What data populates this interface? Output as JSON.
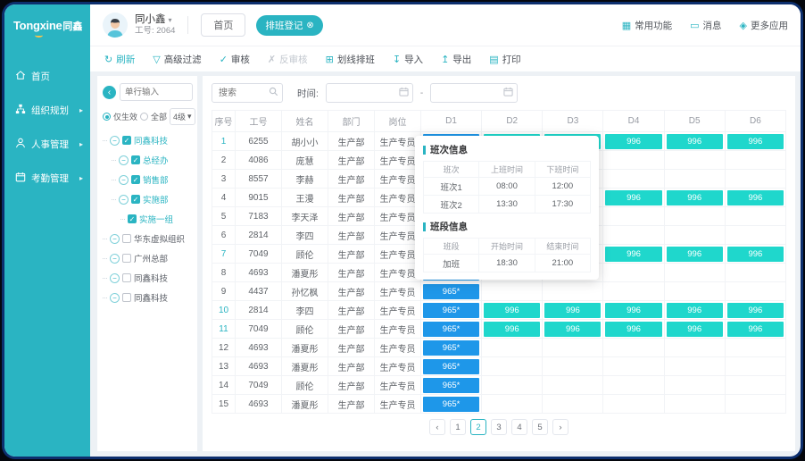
{
  "brand": {
    "logo_en": "Tongxine",
    "logo_cn": "同鑫"
  },
  "icons": {
    "caret_down": "▾",
    "arrow_right": "▸",
    "close_circle": "⊗",
    "grid": "▦",
    "message": "▭",
    "diamond": "◈",
    "expander_minus": "−",
    "back_arrow": "‹",
    "check": "✓"
  },
  "sidebar": {
    "items": [
      {
        "name": "home",
        "label": "首页",
        "arrow": false
      },
      {
        "name": "org-planning",
        "label": "组织规划",
        "arrow": true
      },
      {
        "name": "hr-management",
        "label": "人事管理",
        "arrow": true
      },
      {
        "name": "attendance-management",
        "label": "考勤管理",
        "arrow": true
      }
    ]
  },
  "header": {
    "user_name": "同小鑫",
    "user_id": "工号: 2064",
    "home_button": "首页",
    "tab_badge": "排班登记",
    "actions": [
      {
        "name": "quick-functions",
        "label": "常用功能",
        "glyph": "▦"
      },
      {
        "name": "messages",
        "label": "消息",
        "glyph": "▭"
      },
      {
        "name": "more-apps",
        "label": "更多应用",
        "glyph": "◈"
      }
    ]
  },
  "toolbar": {
    "items": [
      {
        "name": "refresh",
        "label": "刷新",
        "glyph": "↻",
        "state": "active"
      },
      {
        "name": "advanced-filter",
        "label": "高级过滤",
        "glyph": "▽",
        "state": "normal"
      },
      {
        "name": "audit",
        "label": "审核",
        "glyph": "✓",
        "state": "normal"
      },
      {
        "name": "reverse-audit",
        "label": "反审核",
        "glyph": "✗",
        "state": "disabled"
      },
      {
        "name": "line-scheduling",
        "label": "划线排班",
        "glyph": "⊞",
        "state": "normal"
      },
      {
        "name": "import",
        "label": "导入",
        "glyph": "↧",
        "state": "normal"
      },
      {
        "name": "export",
        "label": "导出",
        "glyph": "↥",
        "state": "normal"
      },
      {
        "name": "print",
        "label": "打印",
        "glyph": "▤",
        "state": "normal"
      }
    ]
  },
  "tree_panel": {
    "search_placeholder": "单行输入",
    "radio_effective": "仅生效",
    "radio_all": "全部",
    "level_select": "4级",
    "nodes": [
      {
        "label": "同鑫科技",
        "level": 0,
        "checked": true,
        "expander": true
      },
      {
        "label": "总经办",
        "level": 1,
        "checked": true,
        "expander": true
      },
      {
        "label": "销售部",
        "level": 1,
        "checked": true,
        "expander": true
      },
      {
        "label": "实施部",
        "level": 1,
        "checked": true,
        "expander": true
      },
      {
        "label": "实施一组",
        "level": 2,
        "checked": true,
        "expander": false
      },
      {
        "label": "华东虚拟组织",
        "level": 0,
        "checked": false,
        "expander": true
      },
      {
        "label": "广州总部",
        "level": 0,
        "checked": false,
        "expander": true
      },
      {
        "label": "同鑫科技",
        "level": 0,
        "checked": false,
        "expander": true
      },
      {
        "label": "同鑫科技",
        "level": 0,
        "checked": false,
        "expander": true
      }
    ]
  },
  "filter_bar": {
    "search_placeholder": "搜索",
    "time_label": "时间:",
    "time_separator": "-"
  },
  "schedule_table": {
    "columns": [
      "序号",
      "工号",
      "姓名",
      "部门",
      "岗位",
      "D1",
      "D2",
      "D3",
      "D4",
      "D5",
      "D6"
    ],
    "cell_colors": {
      "965*": "#1e97e9",
      "996": "#1fd7cc"
    },
    "rows": [
      {
        "no": "1",
        "emp_id": "6255",
        "name": "胡小小",
        "dept": "生产部",
        "post": "生产专员",
        "days": [
          "965*",
          "996",
          "996",
          "996",
          "996",
          "996"
        ],
        "highlight": true
      },
      {
        "no": "2",
        "emp_id": "4086",
        "name": "庞慧",
        "dept": "生产部",
        "post": "生产专员",
        "days": [
          "",
          "",
          "",
          "",
          "",
          ""
        ],
        "highlight": false
      },
      {
        "no": "3",
        "emp_id": "8557",
        "name": "李赫",
        "dept": "生产部",
        "post": "生产专员",
        "days": [
          "",
          "",
          "",
          "",
          "",
          ""
        ],
        "highlight": false
      },
      {
        "no": "4",
        "emp_id": "9015",
        "name": "王漫",
        "dept": "生产部",
        "post": "生产专员",
        "days": [
          "",
          "",
          "",
          "996",
          "996",
          "996"
        ],
        "highlight": false
      },
      {
        "no": "5",
        "emp_id": "7183",
        "name": "李天泽",
        "dept": "生产部",
        "post": "生产专员",
        "days": [
          "",
          "",
          "",
          "",
          "",
          ""
        ],
        "highlight": false
      },
      {
        "no": "6",
        "emp_id": "2814",
        "name": "李四",
        "dept": "生产部",
        "post": "生产专员",
        "days": [
          "",
          "",
          "",
          "",
          "",
          ""
        ],
        "highlight": false
      },
      {
        "no": "7",
        "emp_id": "7049",
        "name": "顾伦",
        "dept": "生产部",
        "post": "生产专员",
        "days": [
          "",
          "",
          "",
          "996",
          "996",
          "996"
        ],
        "highlight": true
      },
      {
        "no": "8",
        "emp_id": "4693",
        "name": "潘夏彤",
        "dept": "生产部",
        "post": "生产专员",
        "days": [
          "965*",
          "",
          "",
          "",
          "",
          ""
        ],
        "highlight": false
      },
      {
        "no": "9",
        "emp_id": "4437",
        "name": "孙忆枫",
        "dept": "生产部",
        "post": "生产专员",
        "days": [
          "965*",
          "",
          "",
          "",
          "",
          ""
        ],
        "highlight": false
      },
      {
        "no": "10",
        "emp_id": "2814",
        "name": "李四",
        "dept": "生产部",
        "post": "生产专员",
        "days": [
          "965*",
          "996",
          "996",
          "996",
          "996",
          "996"
        ],
        "highlight": true
      },
      {
        "no": "11",
        "emp_id": "7049",
        "name": "顾伦",
        "dept": "生产部",
        "post": "生产专员",
        "days": [
          "965*",
          "996",
          "996",
          "996",
          "996",
          "996"
        ],
        "highlight": true
      },
      {
        "no": "12",
        "emp_id": "4693",
        "name": "潘夏彤",
        "dept": "生产部",
        "post": "生产专员",
        "days": [
          "965*",
          "",
          "",
          "",
          "",
          ""
        ],
        "highlight": false
      },
      {
        "no": "13",
        "emp_id": "4693",
        "name": "潘夏彤",
        "dept": "生产部",
        "post": "生产专员",
        "days": [
          "965*",
          "",
          "",
          "",
          "",
          ""
        ],
        "highlight": false
      },
      {
        "no": "14",
        "emp_id": "7049",
        "name": "顾伦",
        "dept": "生产部",
        "post": "生产专员",
        "days": [
          "965*",
          "",
          "",
          "",
          "",
          ""
        ],
        "highlight": false
      },
      {
        "no": "15",
        "emp_id": "4693",
        "name": "潘夏彤",
        "dept": "生产部",
        "post": "生产专员",
        "days": [
          "965*",
          "",
          "",
          "",
          "",
          ""
        ],
        "highlight": false
      }
    ]
  },
  "popover": {
    "shift_title": "班次信息",
    "shift_columns": [
      "班次",
      "上班时间",
      "下班时间"
    ],
    "shift_rows": [
      [
        "班次1",
        "08:00",
        "12:00"
      ],
      [
        "班次2",
        "13:30",
        "17:30"
      ]
    ],
    "segment_title": "班段信息",
    "segment_columns": [
      "班段",
      "开始时间",
      "结束时间"
    ],
    "segment_rows": [
      [
        "加班",
        "18:30",
        "21:00"
      ]
    ]
  },
  "pagination": {
    "prev": "‹",
    "next": "›",
    "pages": [
      "1",
      "2",
      "3",
      "4",
      "5"
    ],
    "active": "2"
  },
  "colors": {
    "brand_teal": "#2ab4c2",
    "cell_teal": "#1fd7cc",
    "cell_blue": "#1e97e9",
    "navy_frame": "#0d2f6e"
  }
}
